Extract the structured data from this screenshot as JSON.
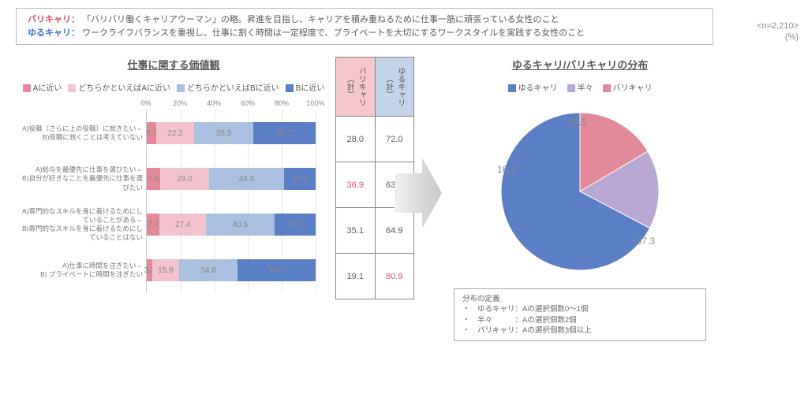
{
  "definitions": {
    "term1_label": "バリキャリ：",
    "term1_text": "「バリバリ働くキャリアウーマン」の略。昇進を目指し、キャリアを積み重ねるために仕事一筋に頑張っている女性のこと",
    "term2_label": "ゆるキャリ：",
    "term2_text": "ワークライフバランスを重視し、仕事に割く時間は一定程度で、プライベートを大切にするワークスタイルを実践する女性のこと"
  },
  "n_label": "<n=2,210>",
  "pct_label": "(%)",
  "left_chart": {
    "title": "仕事に関する価値観",
    "legend": [
      "Aに近い",
      "どちらかといえばAに近い",
      "どちらかといえばBに近い",
      "Bに近い"
    ],
    "colors": [
      "#e38a9a",
      "#f2c3cc",
      "#aac0e0",
      "#5b7fc4"
    ],
    "axis": [
      "0%",
      "20%",
      "40%",
      "60%",
      "80%",
      "100%"
    ],
    "rows": [
      {
        "labelA": "A)役職（さらに上の役職）に就きたい⇔",
        "labelB": "B)役職に就くことは考えていない",
        "vals": [
          5.7,
          22.2,
          35.3,
          36.7
        ]
      },
      {
        "labelA": "A)給与を最優先に仕事を選びたい⇔",
        "labelB": "B)自分が好きなことを最優先に仕事を選びたい",
        "vals": [
          7.9,
          29.0,
          44.3,
          18.8
        ]
      },
      {
        "labelA": "A)専門的なスキルを身に着けるためにしていることがある⇔",
        "labelB": "B)専門的なスキルを身に着けるためにしていることはない",
        "vals": [
          7.7,
          27.4,
          40.5,
          24.5
        ]
      },
      {
        "labelA": "A)仕事に時間を注ぎたい⇔",
        "labelB": "B) プライベートに時間を注ぎたい",
        "vals": [
          3.2,
          15.9,
          34.8,
          46.2
        ]
      }
    ]
  },
  "mid_table": {
    "head1": "バリキャリ（計）",
    "head2": "ゆるキャリ（計）",
    "rows": [
      {
        "a": "28.0",
        "b": "72.0",
        "ared": false,
        "bred": false
      },
      {
        "a": "36.9",
        "b": "63.1",
        "ared": true,
        "bred": false
      },
      {
        "a": "35.1",
        "b": "64.9",
        "ared": false,
        "bred": false
      },
      {
        "a": "19.1",
        "b": "80.9",
        "ared": false,
        "bred": true
      }
    ]
  },
  "right_chart": {
    "title": "ゆるキャリ/バリキャリの分布",
    "legend": [
      "ゆるキャリ",
      "半々",
      "バリキャリ"
    ],
    "colors": [
      "#5b7fc4",
      "#b9a8d3",
      "#e38a9a"
    ],
    "values": [
      67.3,
      16.2,
      16.5
    ],
    "value_labels": [
      "67.3",
      "16.2",
      "16.5"
    ]
  },
  "dist_def": {
    "title": "分布の定義",
    "l1": "・　ゆるキャリ：Aの選択個数0～1個",
    "l2": "・　半々　　　：Aの選択個数2個",
    "l3": "・　バリキャリ：Aの選択個数3個以上"
  }
}
